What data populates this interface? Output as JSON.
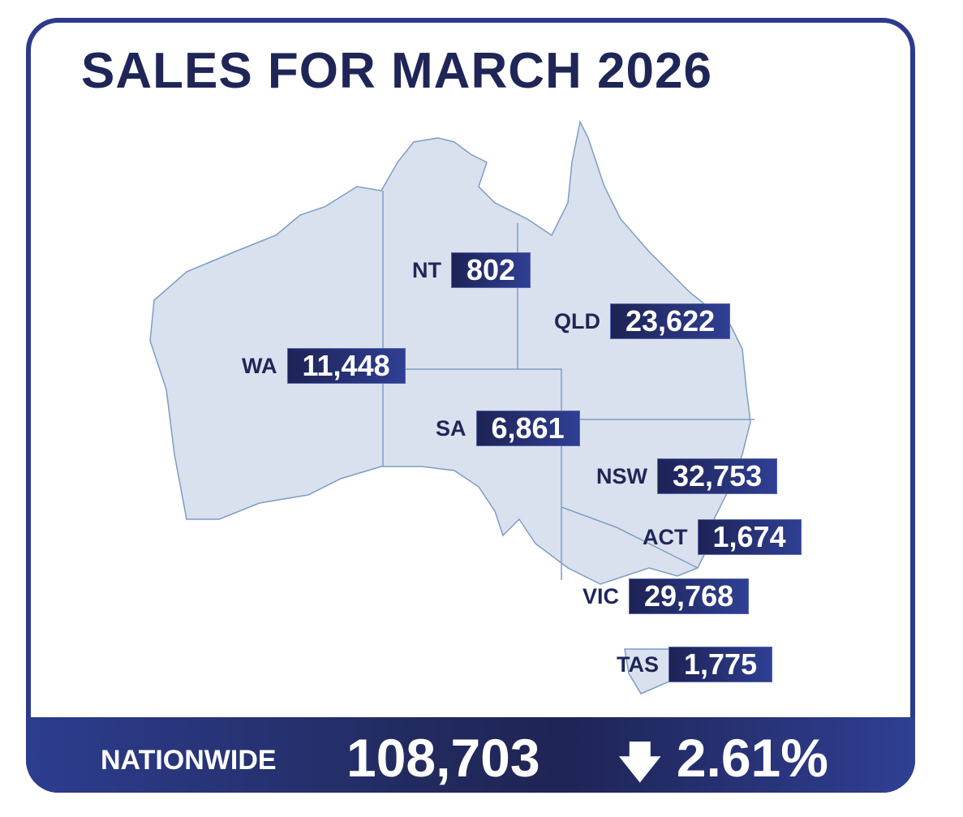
{
  "title": "SALES FOR MARCH 2026",
  "colors": {
    "accent": "#2d3a8c",
    "dark": "#1f2657",
    "land": "#d9e1ee",
    "border": "#7f9cc4"
  },
  "states": [
    {
      "code": "NT",
      "value": "802"
    },
    {
      "code": "QLD",
      "value": "23,622"
    },
    {
      "code": "WA",
      "value": "11,448"
    },
    {
      "code": "SA",
      "value": "6,861"
    },
    {
      "code": "NSW",
      "value": "32,753"
    },
    {
      "code": "ACT",
      "value": "1,674"
    },
    {
      "code": "VIC",
      "value": "29,768"
    },
    {
      "code": "TAS",
      "value": "1,775"
    }
  ],
  "footer": {
    "label": "NATIONWIDE",
    "total": "108,703",
    "change_icon": "arrow-down-icon",
    "change": "2.61%",
    "direction": "down"
  }
}
